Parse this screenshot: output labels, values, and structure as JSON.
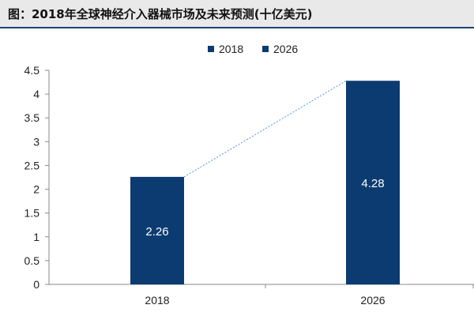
{
  "header": {
    "title": "图：2018年全球神经介入器械市场及未来预测(十亿美元)"
  },
  "colors": {
    "bar": "#0b3b70",
    "connector": "#5b8fd0",
    "title_rule": "#1f3f73"
  },
  "chart_data": {
    "type": "bar",
    "categories": [
      "2018",
      "2026"
    ],
    "series": [
      {
        "name": "2018",
        "values": [
          2.26,
          null
        ]
      },
      {
        "name": "2026",
        "values": [
          null,
          4.28
        ]
      }
    ],
    "values": [
      2.26,
      4.28
    ],
    "data_labels": [
      "2.26",
      "4.28"
    ],
    "title": "图：2018年全球神经介入器械市场及未来预测(十亿美元)",
    "xlabel": "",
    "ylabel": "",
    "ylim": [
      0,
      4.5
    ],
    "yticks": [
      "0",
      "0.5",
      "1",
      "1.5",
      "2",
      "2.5",
      "3",
      "3.5",
      "4",
      "4.5"
    ],
    "legend": {
      "position": "top",
      "entries": [
        "2018",
        "2026"
      ]
    },
    "grid": false,
    "connector_line": "dotted line linking bar tops"
  }
}
